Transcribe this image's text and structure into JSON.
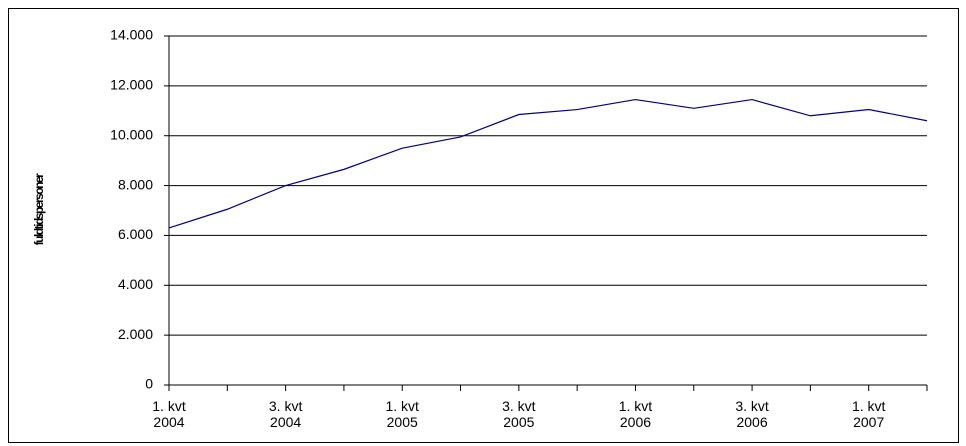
{
  "chart_data": {
    "type": "line",
    "y_label": "fuldtidspersoner",
    "categories": [
      "1. kvt 2004",
      null,
      "3. kvt 2004",
      null,
      "1. kvt 2005",
      null,
      "3. kvt 2005",
      null,
      "1. kvt 2006",
      null,
      "3. kvt 2006",
      null,
      "1. kvt 2007",
      null
    ],
    "series": [
      {
        "name": "fuldtidspersoner",
        "color": "#000080",
        "values": [
          6300,
          7050,
          8000,
          8650,
          9500,
          9950,
          10850,
          11050,
          11450,
          11100,
          11450,
          10800,
          11050,
          10600
        ]
      }
    ],
    "ylim": [
      0,
      14000
    ],
    "yticks": [
      {
        "value": 0,
        "label": "0"
      },
      {
        "value": 2000,
        "label": "2.000"
      },
      {
        "value": 4000,
        "label": "4.000"
      },
      {
        "value": 6000,
        "label": "6.000"
      },
      {
        "value": 8000,
        "label": "8.000"
      },
      {
        "value": 10000,
        "label": "10.000"
      },
      {
        "value": 12000,
        "label": "12.000"
      },
      {
        "value": 14000,
        "label": "14.000"
      }
    ],
    "grid": true
  }
}
